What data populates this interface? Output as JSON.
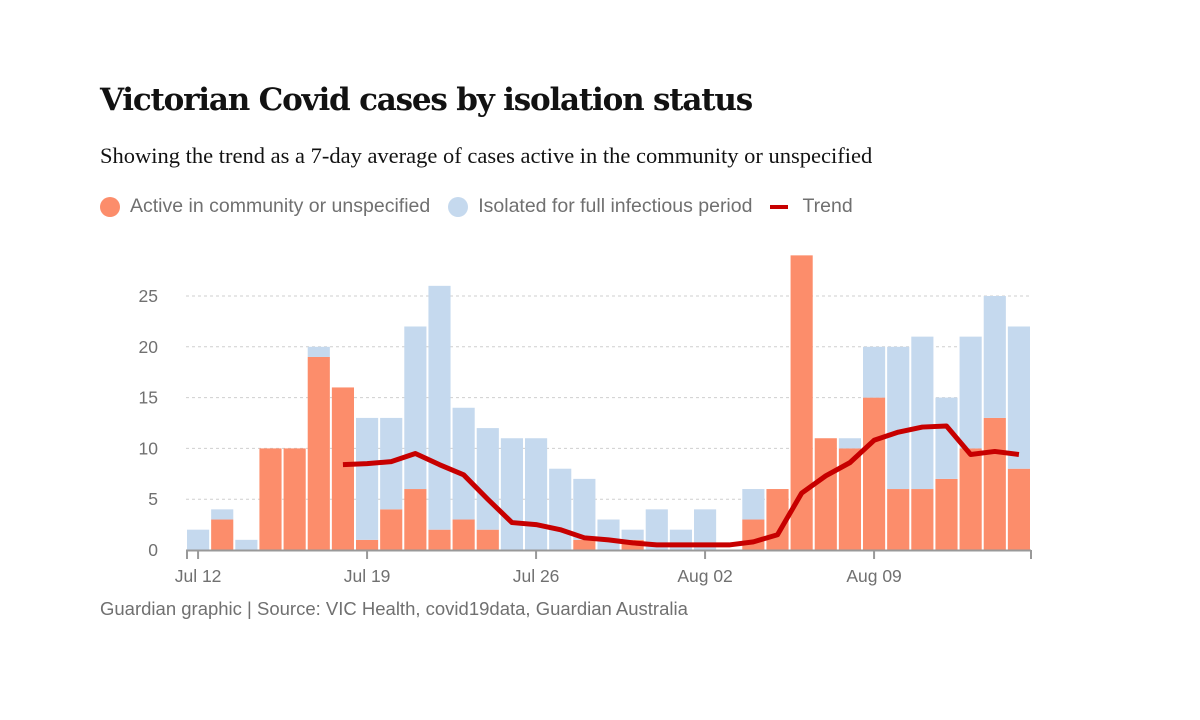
{
  "header": {
    "title": "Victorian Covid cases by isolation status",
    "subtitle": "Showing the trend as a 7-day average of cases active in the community or unspecified"
  },
  "legend": [
    {
      "label": "Active in community or unspecified",
      "color": "#fc8d6b",
      "shape": "dot"
    },
    {
      "label": "Isolated for full infectious period",
      "color": "#c5d9ee",
      "shape": "dot"
    },
    {
      "label": "Trend",
      "color": "#c70000",
      "shape": "line"
    }
  ],
  "footer": "Guardian graphic | Source: VIC Health, covid19data, Guardian Australia",
  "chart_data": {
    "type": "bar",
    "stacked": true,
    "title": "Victorian Covid cases by isolation status",
    "xlabel": "",
    "ylabel": "",
    "ylim": [
      0,
      29
    ],
    "yticks": [
      0,
      5,
      10,
      15,
      20,
      25
    ],
    "grid": true,
    "legend_position": "top-left",
    "categories": [
      "Jul 12",
      "Jul 13",
      "Jul 14",
      "Jul 15",
      "Jul 16",
      "Jul 17",
      "Jul 18",
      "Jul 19",
      "Jul 20",
      "Jul 21",
      "Jul 22",
      "Jul 23",
      "Jul 24",
      "Jul 25",
      "Jul 26",
      "Jul 27",
      "Jul 28",
      "Jul 29",
      "Jul 30",
      "Jul 31",
      "Aug 01",
      "Aug 02",
      "Aug 03",
      "Aug 04",
      "Aug 05",
      "Aug 06",
      "Aug 07",
      "Aug 08",
      "Aug 09",
      "Aug 10",
      "Aug 11",
      "Aug 12",
      "Aug 13",
      "Aug 14",
      "Aug 15"
    ],
    "xtick_labels": [
      {
        "index": 0,
        "label": "Jul 12"
      },
      {
        "index": 7,
        "label": "Jul 19"
      },
      {
        "index": 14,
        "label": "Jul 26"
      },
      {
        "index": 21,
        "label": "Aug 02"
      },
      {
        "index": 28,
        "label": "Aug 09"
      }
    ],
    "series": [
      {
        "name": "Active in community or unspecified",
        "color": "#fc8d6b",
        "values": [
          0,
          3,
          0,
          10,
          10,
          19,
          16,
          1,
          4,
          6,
          2,
          3,
          2,
          0,
          0,
          0,
          1,
          0,
          1,
          0,
          0,
          0,
          0,
          3,
          6,
          29,
          11,
          10,
          15,
          6,
          6,
          7,
          10,
          13,
          8
        ]
      },
      {
        "name": "Isolated for full infectious period",
        "color": "#c5d9ee",
        "values": [
          2,
          1,
          1,
          0,
          0,
          1,
          0,
          12,
          9,
          16,
          24,
          11,
          10,
          11,
          11,
          8,
          6,
          3,
          1,
          4,
          2,
          4,
          0,
          3,
          0,
          0,
          0,
          1,
          5,
          14,
          15,
          8,
          11,
          12,
          14
        ]
      },
      {
        "name": "Trend",
        "type": "line",
        "color": "#c70000",
        "start_index": 6,
        "values": [
          8.4,
          8.5,
          8.7,
          9.5,
          8.4,
          7.4,
          5.0,
          2.7,
          2.5,
          2.0,
          1.2,
          1.0,
          0.7,
          0.5,
          0.5,
          0.5,
          0.5,
          0.8,
          1.5,
          5.6,
          7.3,
          8.6,
          10.8,
          11.6,
          12.1,
          12.2,
          9.4,
          9.7,
          9.4
        ]
      }
    ]
  }
}
